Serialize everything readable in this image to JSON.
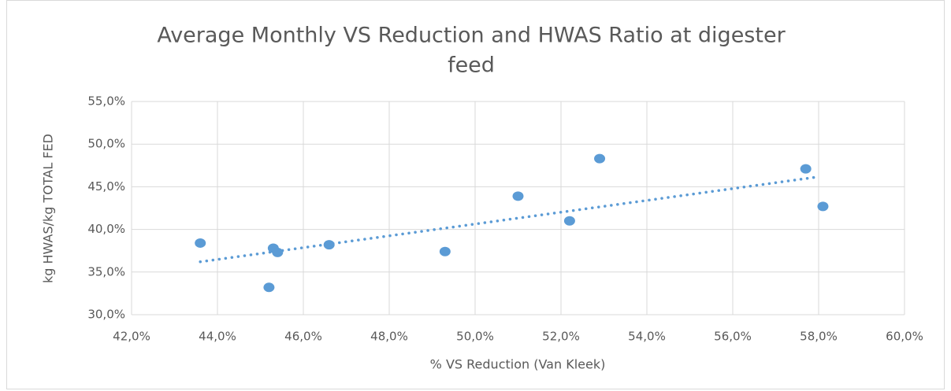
{
  "chart_data": {
    "type": "scatter",
    "title": [
      "Average Monthly VS Reduction and HWAS Ratio at digester",
      "feed"
    ],
    "x_label": "% VS Reduction (Van Kleek)",
    "y_label": "kg HWAS/kg  TOTAL FED",
    "x": [
      43.6,
      45.2,
      45.3,
      45.4,
      46.6,
      49.3,
      51.0,
      52.2,
      52.9,
      57.7,
      58.1
    ],
    "values": [
      38.4,
      33.2,
      37.8,
      37.3,
      38.2,
      37.4,
      43.9,
      41.0,
      48.3,
      47.1,
      42.7
    ],
    "color": "#5b9bd5",
    "trendline": {
      "x": [
        43.6,
        57.9
      ],
      "y": [
        36.2,
        46.1
      ],
      "style": "dotted"
    },
    "xlim": [
      42,
      60
    ],
    "ylim": [
      30,
      55
    ],
    "xticks": [
      {
        "value": 42,
        "label": "42,0%"
      },
      {
        "value": 44,
        "label": "44,0%"
      },
      {
        "value": 46,
        "label": "46,0%"
      },
      {
        "value": 48,
        "label": "48,0%"
      },
      {
        "value": 50,
        "label": "50,0%"
      },
      {
        "value": 52,
        "label": "52,0%"
      },
      {
        "value": 54,
        "label": "54,0%"
      },
      {
        "value": 56,
        "label": "56,0%"
      },
      {
        "value": 58,
        "label": "58,0%"
      },
      {
        "value": 60,
        "label": "60,0%"
      }
    ],
    "yticks": [
      {
        "value": 30,
        "label": "30,0%"
      },
      {
        "value": 35,
        "label": "35,0%"
      },
      {
        "value": 40,
        "label": "40,0%"
      },
      {
        "value": 45,
        "label": "45,0%"
      },
      {
        "value": 50,
        "label": "50,0%"
      },
      {
        "value": 55,
        "label": "55,0%"
      }
    ],
    "grid": true
  }
}
